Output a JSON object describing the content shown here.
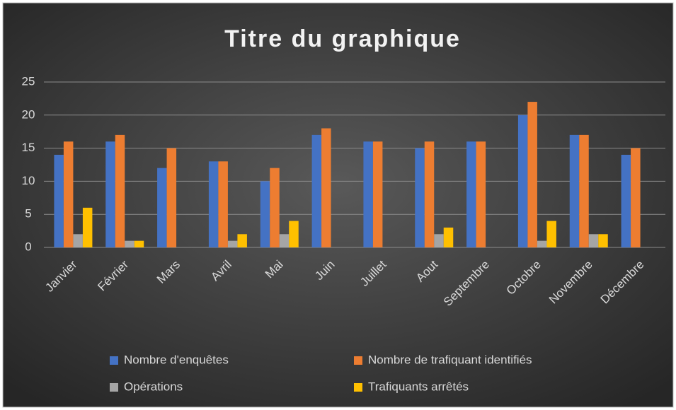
{
  "chart_data": {
    "type": "bar",
    "title": "Titre du graphique",
    "categories": [
      "Janvier",
      "Février",
      "Mars",
      "Avril",
      "Mai",
      "Juin",
      "Juillet",
      "Aout",
      "Septembre",
      "Octobre",
      "Novembre",
      "Décembre"
    ],
    "series": [
      {
        "name": "Nombre d'enquêtes",
        "color": "#4472c4",
        "values": [
          14,
          16,
          12,
          13,
          10,
          17,
          16,
          15,
          16,
          20,
          17,
          14
        ]
      },
      {
        "name": "Nombre de trafiquant identifiés",
        "color": "#ed7d31",
        "values": [
          16,
          17,
          15,
          13,
          12,
          18,
          16,
          16,
          16,
          22,
          17,
          15
        ]
      },
      {
        "name": "Opérations",
        "color": "#a5a5a5",
        "values": [
          2,
          1,
          0,
          1,
          2,
          0,
          0,
          2,
          0,
          1,
          2,
          0
        ]
      },
      {
        "name": "Trafiquants arrêtés",
        "color": "#ffc000",
        "values": [
          6,
          1,
          0,
          2,
          4,
          0,
          0,
          3,
          0,
          4,
          2,
          0
        ]
      }
    ],
    "ylim": [
      0,
      25
    ],
    "yticks": [
      0,
      5,
      10,
      15,
      20,
      25
    ],
    "grid": true,
    "legend": "bottom"
  }
}
